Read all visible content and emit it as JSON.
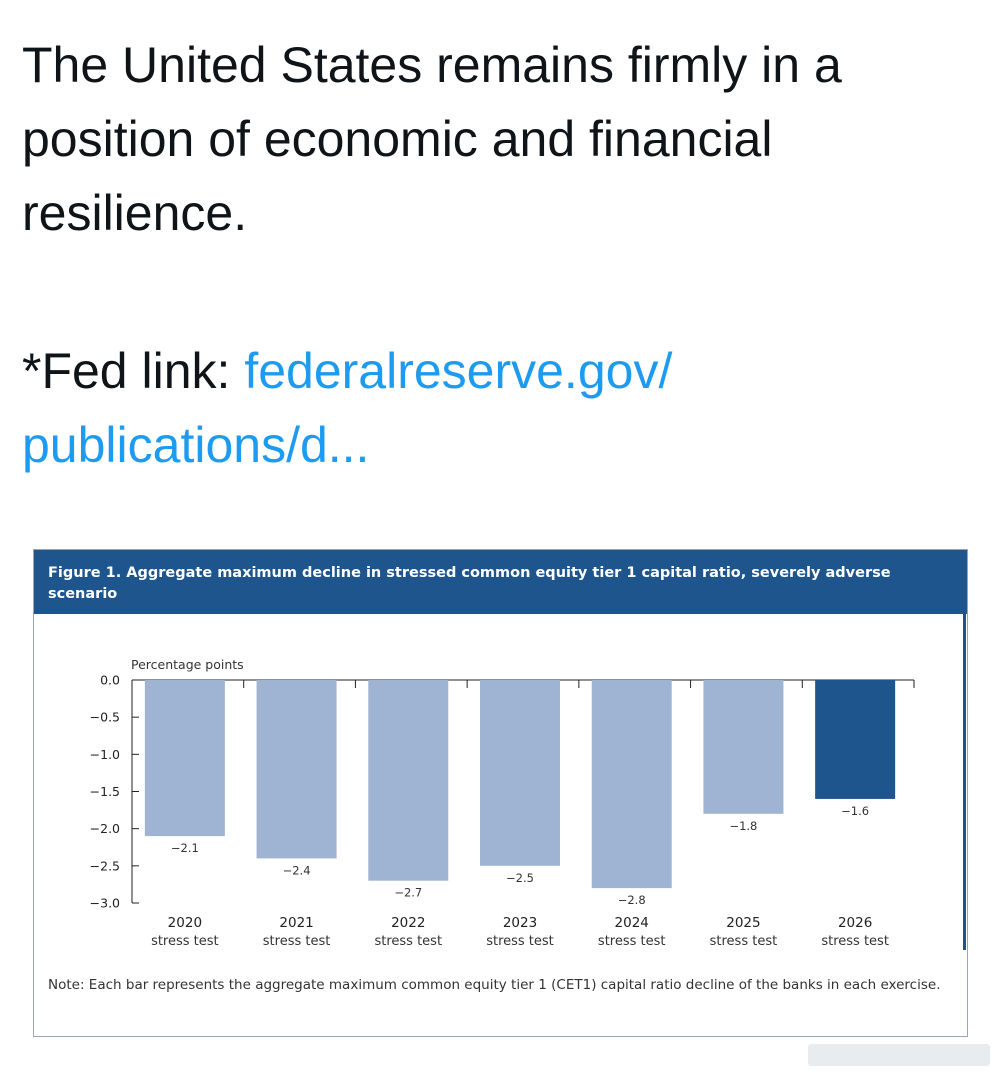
{
  "post": {
    "text": "The United States remains firmly in a position of economic and financial resilience.",
    "link_prefix": "*Fed link: ",
    "link_text_1": "federalreserve.gov/",
    "link_text_2": "publications/d..."
  },
  "figure": {
    "title": "Figure 1. Aggregate maximum decline in stressed common equity tier 1 capital ratio, severely adverse scenario",
    "note": "Note: Each bar represents the aggregate maximum common equity tier 1 (CET1) capital ratio decline of the banks in each exercise."
  },
  "colors": {
    "header": "#1f558d",
    "bar_default": "#9fb3d3",
    "bar_highlight": "#1f558d",
    "link": "#1d9bf0"
  },
  "chart_data": {
    "type": "bar",
    "ylabel": "Percentage points",
    "ylim": [
      -3.0,
      0.0
    ],
    "yticks": [
      0.0,
      -0.5,
      -1.0,
      -1.5,
      -2.0,
      -2.5,
      -3.0
    ],
    "ytick_labels": [
      "0.0",
      "−0.5",
      "−1.0",
      "−1.5",
      "−2.0",
      "−2.5",
      "−3.0"
    ],
    "categories": [
      "2020",
      "2021",
      "2022",
      "2023",
      "2024",
      "2025",
      "2026"
    ],
    "category_sublabel": "stress test",
    "values": [
      -2.1,
      -2.4,
      -2.7,
      -2.5,
      -2.8,
      -1.8,
      -1.6
    ],
    "value_labels": [
      "−2.1",
      "−2.4",
      "−2.7",
      "−2.5",
      "−2.8",
      "−1.8",
      "−1.6"
    ],
    "highlight_index": 6,
    "grid": false
  }
}
